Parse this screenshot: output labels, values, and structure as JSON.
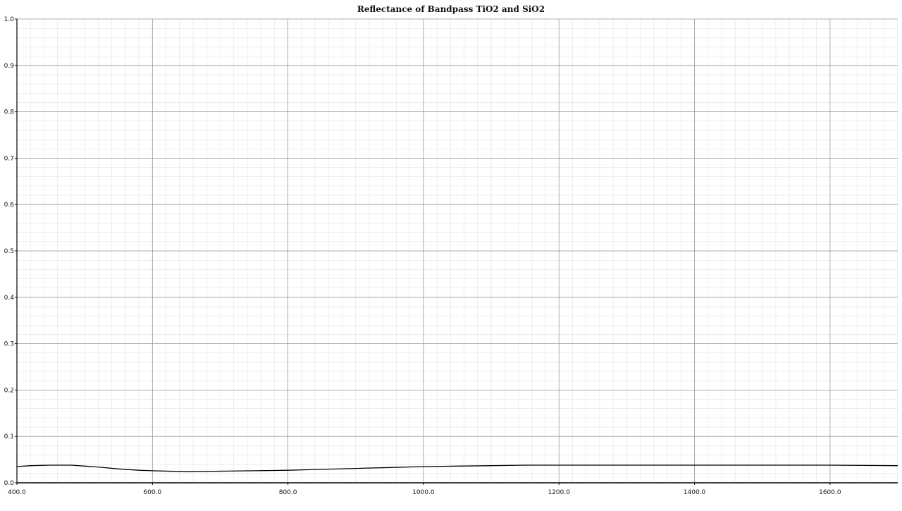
{
  "chart_data": {
    "type": "line",
    "title": "Reflectance of Bandpass TiO2 and SiO2",
    "xlabel": "",
    "ylabel": "",
    "xlim": [
      400,
      1700
    ],
    "ylim": [
      0,
      1.0
    ],
    "x_ticks": [
      "400.0",
      "600.0",
      "800.0",
      "1000.0",
      "1200.0",
      "1400.0",
      "1600.0"
    ],
    "y_ticks": [
      "0.0",
      "0.1",
      "0.2",
      "0.3",
      "0.4",
      "0.5",
      "0.6",
      "0.7",
      "0.8",
      "0.9",
      "1.0"
    ],
    "grid": true,
    "series": [
      {
        "values_x": [
          400,
          420,
          450,
          480,
          500,
          520,
          550,
          580,
          600,
          650,
          700,
          750,
          800,
          850,
          900,
          950,
          1000,
          1050,
          1100,
          1150,
          1200,
          1300,
          1400,
          1500,
          1600,
          1700
        ],
        "values_y": [
          0.035,
          0.037,
          0.038,
          0.038,
          0.036,
          0.034,
          0.03,
          0.027,
          0.026,
          0.024,
          0.025,
          0.026,
          0.027,
          0.029,
          0.031,
          0.033,
          0.035,
          0.036,
          0.037,
          0.038,
          0.038,
          0.038,
          0.038,
          0.038,
          0.038,
          0.037
        ],
        "color": "#000000"
      }
    ]
  }
}
